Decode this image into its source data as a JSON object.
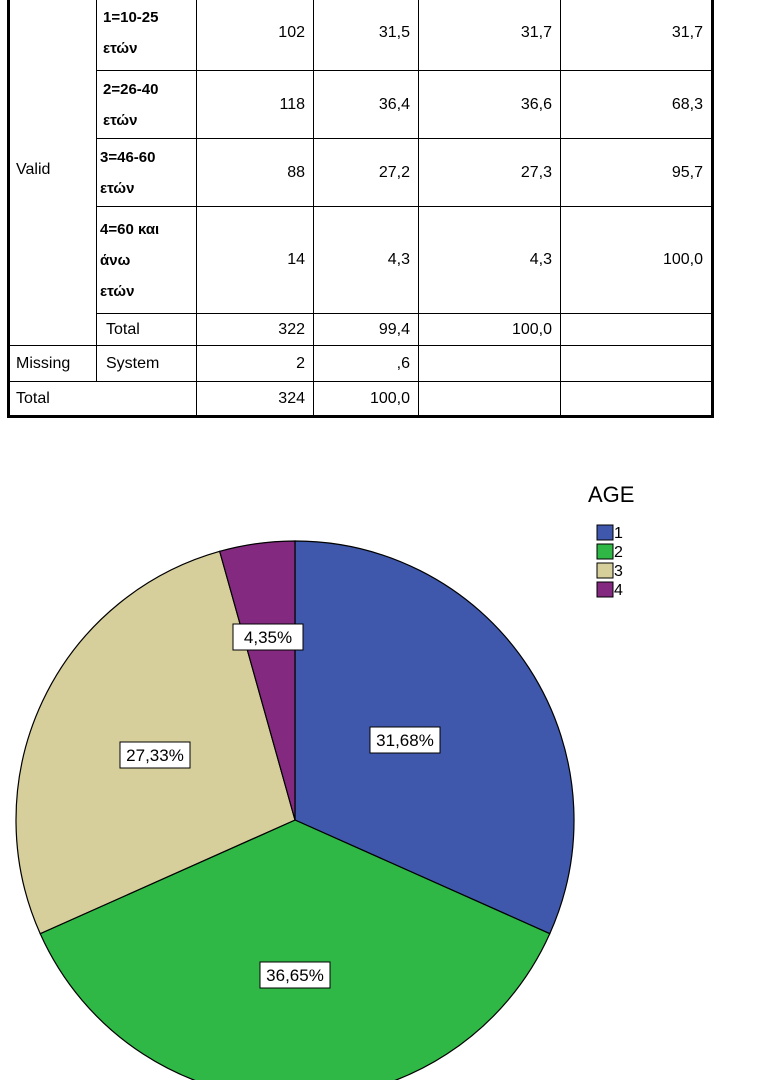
{
  "table": {
    "rows": [
      {
        "group": "",
        "category": "1=10-25\nετών",
        "frequency": "102",
        "percent": "31,5",
        "valid_percent": "31,7",
        "cumulative_percent": "31,7"
      },
      {
        "group": "",
        "category": "2=26-40\nετών",
        "frequency": "118",
        "percent": "36,4",
        "valid_percent": "36,6",
        "cumulative_percent": "68,3"
      },
      {
        "group": "Valid",
        "category": "3=46-60\nετών",
        "frequency": "88",
        "percent": "27,2",
        "valid_percent": "27,3",
        "cumulative_percent": "95,7"
      },
      {
        "group": "",
        "category": "4=60 και\nάνω\nετών",
        "frequency": "14",
        "percent": "4,3",
        "valid_percent": "4,3",
        "cumulative_percent": "100,0"
      },
      {
        "group": "",
        "category": "Total",
        "frequency": "322",
        "percent": "99,4",
        "valid_percent": "100,0",
        "cumulative_percent": ""
      },
      {
        "group": "Missing",
        "category": "System",
        "frequency": "2",
        "percent": ",6",
        "valid_percent": "",
        "cumulative_percent": ""
      },
      {
        "group": "Total",
        "category": "",
        "frequency": "324",
        "percent": "100,0",
        "valid_percent": "",
        "cumulative_percent": ""
      }
    ]
  },
  "chart_data": {
    "type": "pie",
    "legend_title": "AGE",
    "legend_position": "top-right",
    "slices": [
      {
        "label": "1",
        "value": 31.68,
        "display": "31,68%",
        "color": "#3f58ab"
      },
      {
        "label": "2",
        "value": 36.65,
        "display": "36,65%",
        "color": "#2fb846"
      },
      {
        "label": "3",
        "value": 27.33,
        "display": "27,33%",
        "color": "#d6cf9c"
      },
      {
        "label": "4",
        "value": 4.35,
        "display": "4,35%",
        "color": "#842980"
      }
    ]
  }
}
